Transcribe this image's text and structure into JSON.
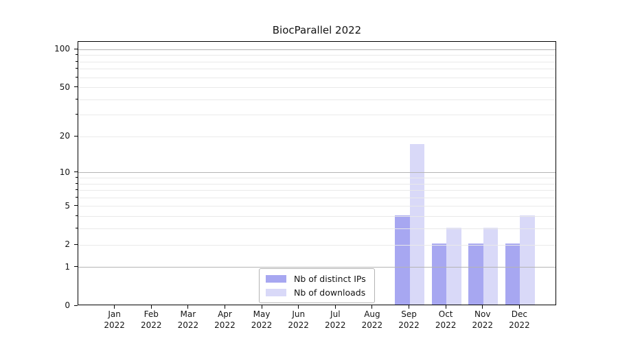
{
  "title": "BiocParallel 2022",
  "legend": {
    "items": [
      {
        "label": "Nb of distinct IPs",
        "color": "#a7a7f1"
      },
      {
        "label": "Nb of downloads",
        "color": "#d9d9f8"
      }
    ]
  },
  "chart_data": {
    "type": "bar",
    "title": "BiocParallel 2022",
    "categories": [
      "Jan 2022",
      "Feb 2022",
      "Mar 2022",
      "Apr 2022",
      "May 2022",
      "Jun 2022",
      "Jul 2022",
      "Aug 2022",
      "Sep 2022",
      "Oct 2022",
      "Nov 2022",
      "Dec 2022"
    ],
    "months": [
      "Jan",
      "Feb",
      "Mar",
      "Apr",
      "May",
      "Jun",
      "Jul",
      "Aug",
      "Sep",
      "Oct",
      "Nov",
      "Dec"
    ],
    "year": "2022",
    "series": [
      {
        "name": "Nb of distinct IPs",
        "color": "#a7a7f1",
        "values": [
          0,
          0,
          0,
          0,
          0,
          0,
          0,
          0,
          4,
          2,
          2,
          2
        ]
      },
      {
        "name": "Nb of downloads",
        "color": "#d9d9f8",
        "values": [
          0,
          0,
          0,
          0,
          0,
          0,
          0,
          0,
          17,
          3,
          3,
          4
        ]
      }
    ],
    "xlabel": "",
    "ylabel": "",
    "yscale": "log1p",
    "ylim": [
      0,
      115
    ],
    "yticks": [
      0,
      1,
      2,
      5,
      10,
      20,
      50,
      100
    ],
    "grid": true,
    "grid_major_values": [
      1,
      10,
      100
    ],
    "grid_minor_values": [
      2,
      3,
      4,
      5,
      6,
      7,
      8,
      9,
      20,
      30,
      40,
      50,
      60,
      70,
      80,
      90
    ],
    "grid_on_top_of_bars": true,
    "legend_position": "lower center"
  }
}
